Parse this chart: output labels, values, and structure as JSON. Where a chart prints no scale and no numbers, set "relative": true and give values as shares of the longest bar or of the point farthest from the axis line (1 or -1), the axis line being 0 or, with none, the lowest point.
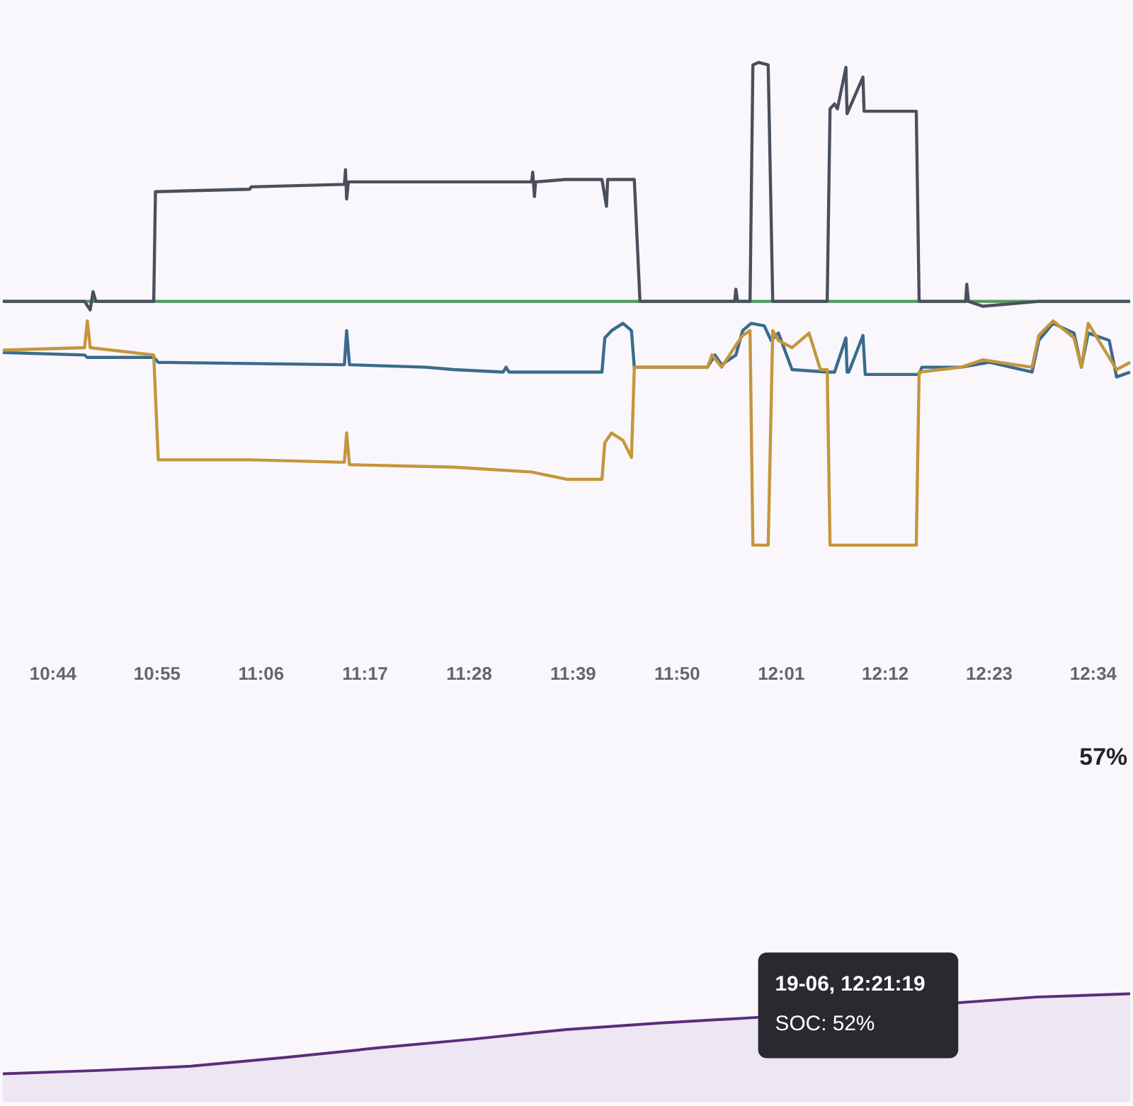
{
  "chart_data": [
    {
      "type": "line",
      "relative": true,
      "tick_labels": "x",
      "xlim": [
        10.646,
        12.633
      ],
      "xticks": [
        {
          "value": 10.7333,
          "label": "10:44"
        },
        {
          "value": 10.9167,
          "label": "10:55"
        },
        {
          "value": 11.1,
          "label": "11:06"
        },
        {
          "value": 11.2833,
          "label": "11:17"
        },
        {
          "value": 11.4667,
          "label": "11:28"
        },
        {
          "value": 11.65,
          "label": "11:39"
        },
        {
          "value": 11.8333,
          "label": "11:50"
        },
        {
          "value": 12.0167,
          "label": "12:01"
        },
        {
          "value": 12.2,
          "label": "12:12"
        },
        {
          "value": 12.3833,
          "label": "12:23"
        },
        {
          "value": 12.5667,
          "label": "12:34"
        }
      ],
      "series": [
        {
          "color": "#4f9a5f",
          "x": [
            10.646,
            12.633
          ],
          "values": [
            0,
            0
          ]
        },
        {
          "color": "#3a6b8c",
          "x": [
            10.646,
            10.79,
            10.795,
            10.912,
            10.92,
            11.248,
            11.252,
            11.257,
            11.392,
            11.441,
            11.528,
            11.533,
            11.538,
            11.702,
            11.707,
            11.719,
            11.739,
            11.754,
            11.759,
            11.769,
            11.888,
            11.901,
            11.913,
            11.938,
            11.95,
            11.965,
            11.988,
            12.0,
            12.013,
            12.037,
            12.099,
            12.112,
            12.132,
            12.134,
            12.137,
            12.162,
            12.166,
            12.261,
            12.266,
            12.335,
            12.385,
            12.46,
            12.472,
            12.497,
            12.534,
            12.547,
            12.559,
            12.596,
            12.609,
            12.633
          ],
          "values": [
            -0.21,
            -0.22,
            -0.23,
            -0.23,
            -0.25,
            -0.26,
            -0.12,
            -0.26,
            -0.27,
            -0.28,
            -0.29,
            -0.27,
            -0.29,
            -0.29,
            -0.15,
            -0.12,
            -0.09,
            -0.12,
            -0.27,
            -0.27,
            -0.27,
            -0.22,
            -0.26,
            -0.22,
            -0.12,
            -0.09,
            -0.1,
            -0.16,
            -0.13,
            -0.28,
            -0.29,
            -0.29,
            -0.15,
            -0.29,
            -0.29,
            -0.14,
            -0.3,
            -0.3,
            -0.27,
            -0.27,
            -0.25,
            -0.29,
            -0.16,
            -0.09,
            -0.13,
            -0.27,
            -0.13,
            -0.16,
            -0.31,
            -0.29
          ]
        },
        {
          "color": "#c4963c",
          "x": [
            10.646,
            10.79,
            10.795,
            10.8,
            10.912,
            10.92,
            11.081,
            11.248,
            11.252,
            11.257,
            11.441,
            11.578,
            11.64,
            11.702,
            11.707,
            11.719,
            11.739,
            11.754,
            11.759,
            11.888,
            11.896,
            11.913,
            11.938,
            11.95,
            11.963,
            11.968,
            11.995,
            12.003,
            12.013,
            12.037,
            12.067,
            12.087,
            12.099,
            12.104,
            12.137,
            12.186,
            12.256,
            12.261,
            12.335,
            12.373,
            12.46,
            12.472,
            12.497,
            12.534,
            12.547,
            12.559,
            12.609,
            12.633
          ],
          "values": [
            -0.2,
            -0.19,
            -0.08,
            -0.19,
            -0.22,
            -0.65,
            -0.65,
            -0.66,
            -0.54,
            -0.67,
            -0.68,
            -0.7,
            -0.73,
            -0.73,
            -0.58,
            -0.54,
            -0.57,
            -0.64,
            -0.27,
            -0.27,
            -0.22,
            -0.27,
            -0.18,
            -0.14,
            -0.12,
            -1,
            -1,
            -0.12,
            -0.16,
            -0.19,
            -0.13,
            -0.28,
            -0.28,
            -1,
            -1,
            -1,
            -1,
            -0.29,
            -0.27,
            -0.24,
            -0.27,
            -0.14,
            -0.08,
            -0.15,
            -0.27,
            -0.09,
            -0.28,
            -0.25
          ]
        },
        {
          "color": "#4a4f5c",
          "x": [
            10.646,
            10.79,
            10.8,
            10.805,
            10.81,
            10.912,
            10.915,
            11.081,
            11.084,
            11.248,
            11.25,
            11.252,
            11.255,
            11.441,
            11.578,
            11.58,
            11.583,
            11.585,
            11.637,
            11.702,
            11.71,
            11.712,
            11.759,
            11.769,
            11.888,
            11.936,
            11.938,
            11.941,
            11.963,
            11.968,
            11.978,
            11.995,
            12.003,
            12.018,
            12.099,
            12.104,
            12.112,
            12.117,
            12.132,
            12.134,
            12.162,
            12.164,
            12.256,
            12.261,
            12.343,
            12.345,
            12.348,
            12.373,
            12.472,
            12.633
          ],
          "values": [
            0,
            0,
            -0.035,
            0.04,
            0,
            0,
            0.45,
            0.46,
            0.47,
            0.48,
            0.54,
            0.42,
            0.49,
            0.49,
            0.49,
            0.53,
            0.43,
            0.49,
            0.5,
            0.5,
            0.39,
            0.5,
            0.5,
            0,
            0,
            0,
            0.05,
            0,
            0,
            0.97,
            0.98,
            0.97,
            0,
            0,
            0,
            0.79,
            0.81,
            0.79,
            0.96,
            0.77,
            0.92,
            0.78,
            0.78,
            0,
            0,
            0.07,
            0,
            -0.02,
            0,
            0
          ]
        }
      ]
    },
    {
      "type": "area",
      "relative": true,
      "tick_labels": false,
      "categories": [
        null,
        null,
        null,
        null,
        null,
        null,
        null,
        null,
        null,
        null,
        null,
        null,
        null
      ],
      "series": [
        {
          "color": "#5c2d7a",
          "values": [
            0.26,
            0.29,
            0.33,
            0.41,
            0.5,
            0.58,
            0.67,
            0.73,
            0.78,
            null,
            null,
            0.97,
            1
          ]
        }
      ],
      "annotations": [
        "57%",
        "19-06, 12:21:19",
        "SOC: 52%"
      ]
    }
  ]
}
